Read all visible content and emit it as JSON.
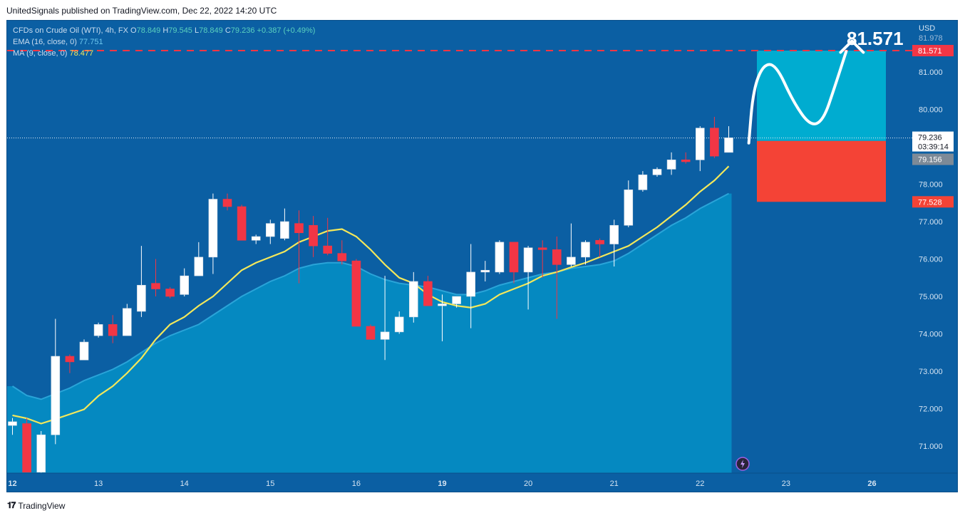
{
  "caption": "UnitedSignals published on TradingView.com, Dec 22, 2022 14:20 UTC",
  "brand": "TradingView",
  "brand_icon": "tradingview-logo-icon",
  "legend": {
    "symbol": "CFDs on Crude Oil (WTI), 4h, FX",
    "o_label": "O",
    "o": "78.849",
    "h_label": "H",
    "h": "79.545",
    "l_label": "L",
    "l": "78.849",
    "c_label": "C",
    "c": "79.236",
    "change": "+0.387 (+0.49%)",
    "ema_label": "EMA (16, close, 0)",
    "ema_value": "77.751",
    "ma_label": "MA (9, close, 0)",
    "ma_value": "78.477"
  },
  "colors": {
    "background": "#0b5fa3",
    "area_fill": "#0589c1",
    "ema_line": "#2aa4d8",
    "ma_line": "#f4e85a",
    "bull": "#ffffff",
    "bear": "#f23645",
    "target_zone": "#00acd0",
    "stop_zone": "#f44336",
    "target_line": "#f23645"
  },
  "chart_data": {
    "type": "candlestick",
    "currency": "USD",
    "ylim": [
      70.3,
      81.95
    ],
    "y_ticks": [
      "71.000",
      "72.000",
      "73.000",
      "74.000",
      "75.000",
      "76.000",
      "77.000",
      "78.000",
      "79.000",
      "80.000",
      "81.000"
    ],
    "x_ticks": [
      {
        "label": "12",
        "index": 0
      },
      {
        "label": "13",
        "index": 6
      },
      {
        "label": "14",
        "index": 12
      },
      {
        "label": "15",
        "index": 18
      },
      {
        "label": "16",
        "index": 24
      },
      {
        "label": "19",
        "index": 30
      },
      {
        "label": "20",
        "index": 36
      },
      {
        "label": "21",
        "index": 42
      },
      {
        "label": "22",
        "index": 48
      },
      {
        "label": "23",
        "index": 54
      },
      {
        "label": "26",
        "index": 60
      }
    ],
    "candles": [
      [
        71.55,
        71.75,
        71.3,
        71.65
      ],
      [
        71.6,
        71.75,
        70.3,
        70.3
      ],
      [
        70.3,
        71.4,
        70.25,
        71.3
      ],
      [
        71.3,
        74.4,
        71.05,
        73.4
      ],
      [
        73.4,
        73.45,
        72.95,
        73.25
      ],
      [
        73.3,
        73.85,
        73.3,
        73.78
      ],
      [
        73.95,
        74.3,
        73.9,
        74.25
      ],
      [
        74.25,
        74.5,
        73.75,
        73.95
      ],
      [
        73.95,
        74.8,
        73.95,
        74.68
      ],
      [
        74.6,
        76.35,
        74.45,
        75.3
      ],
      [
        75.35,
        76.0,
        75.0,
        75.2
      ],
      [
        75.2,
        75.25,
        74.95,
        75.0
      ],
      [
        75.05,
        75.75,
        75.0,
        75.55
      ],
      [
        75.55,
        76.45,
        75.55,
        76.05
      ],
      [
        76.05,
        77.75,
        75.6,
        77.6
      ],
      [
        77.6,
        77.75,
        77.3,
        77.4
      ],
      [
        77.4,
        77.45,
        76.5,
        76.5
      ],
      [
        76.5,
        76.65,
        76.4,
        76.6
      ],
      [
        76.6,
        77.05,
        76.4,
        76.95
      ],
      [
        76.55,
        77.35,
        76.5,
        77.0
      ],
      [
        76.95,
        77.3,
        75.35,
        76.7
      ],
      [
        76.9,
        77.15,
        76.05,
        76.35
      ],
      [
        76.35,
        77.1,
        76.1,
        76.15
      ],
      [
        76.15,
        76.5,
        75.85,
        75.95
      ],
      [
        75.95,
        76.0,
        74.2,
        74.2
      ],
      [
        74.2,
        74.25,
        73.85,
        73.85
      ],
      [
        73.85,
        75.55,
        73.3,
        74.05
      ],
      [
        74.05,
        74.6,
        74.0,
        74.45
      ],
      [
        74.45,
        75.65,
        74.3,
        75.4
      ],
      [
        75.4,
        75.55,
        74.8,
        74.75
      ],
      [
        74.75,
        75.05,
        73.8,
        74.8
      ],
      [
        74.8,
        75.0,
        74.7,
        75.0
      ],
      [
        75.0,
        76.4,
        74.15,
        75.65
      ],
      [
        75.65,
        75.95,
        75.4,
        75.7
      ],
      [
        75.65,
        76.5,
        75.6,
        76.45
      ],
      [
        76.45,
        76.45,
        75.35,
        75.65
      ],
      [
        75.65,
        76.35,
        74.65,
        76.3
      ],
      [
        76.3,
        76.5,
        75.5,
        76.25
      ],
      [
        76.25,
        76.6,
        74.4,
        75.85
      ],
      [
        75.85,
        76.95,
        75.8,
        76.05
      ],
      [
        76.05,
        76.5,
        75.85,
        76.45
      ],
      [
        76.5,
        76.55,
        76.05,
        76.4
      ],
      [
        76.4,
        77.05,
        75.8,
        76.9
      ],
      [
        76.9,
        78.1,
        76.85,
        77.85
      ],
      [
        77.85,
        78.35,
        77.8,
        78.25
      ],
      [
        78.25,
        78.45,
        78.2,
        78.4
      ],
      [
        78.4,
        78.85,
        78.25,
        78.65
      ],
      [
        78.65,
        78.85,
        78.55,
        78.6
      ],
      [
        78.65,
        79.55,
        78.35,
        79.5
      ],
      [
        79.5,
        79.8,
        78.7,
        78.75
      ],
      [
        78.85,
        79.55,
        78.85,
        79.24
      ]
    ],
    "ma": [
      71.82,
      71.74,
      71.6,
      71.72,
      71.85,
      71.98,
      72.34,
      72.6,
      72.95,
      73.35,
      73.85,
      74.25,
      74.45,
      74.75,
      75.0,
      75.35,
      75.7,
      75.9,
      76.05,
      76.2,
      76.45,
      76.6,
      76.75,
      76.8,
      76.6,
      76.25,
      75.85,
      75.5,
      75.35,
      75.05,
      74.85,
      74.75,
      74.7,
      74.8,
      75.05,
      75.2,
      75.35,
      75.55,
      75.65,
      75.78,
      75.9,
      76.05,
      76.2,
      76.35,
      76.6,
      76.85,
      77.15,
      77.45,
      77.8,
      78.1,
      78.48
    ],
    "ema": [
      72.6,
      72.35,
      72.25,
      72.4,
      72.55,
      72.75,
      72.9,
      73.05,
      73.25,
      73.5,
      73.75,
      73.95,
      74.1,
      74.25,
      74.5,
      74.75,
      75.0,
      75.2,
      75.4,
      75.55,
      75.75,
      75.85,
      75.9,
      75.9,
      75.8,
      75.6,
      75.45,
      75.35,
      75.3,
      75.25,
      75.15,
      75.05,
      75.05,
      75.15,
      75.3,
      75.4,
      75.5,
      75.6,
      75.65,
      75.75,
      75.8,
      75.85,
      75.95,
      76.15,
      76.4,
      76.65,
      76.9,
      77.1,
      77.35,
      77.55,
      77.75
    ],
    "last_price": "79.236",
    "countdown": "03:39:14",
    "prev_close_label": "79.156",
    "target": {
      "price": 81.571,
      "label": "81.571",
      "big_label": "81.571"
    },
    "entry_price": 79.156,
    "stop": {
      "price": 77.528,
      "label": "77.528"
    },
    "scale_partial_label": "81.978",
    "projection_start_index": 51.4,
    "projection_end_index": 58.6,
    "projection_path": [
      [
        51.4,
        79.1
      ],
      [
        51.7,
        80.5
      ],
      [
        52.4,
        81.2
      ],
      [
        53.3,
        81.2
      ],
      [
        54.5,
        80.2
      ],
      [
        55.7,
        79.55
      ],
      [
        56.6,
        79.7
      ],
      [
        57.4,
        80.6
      ],
      [
        58.2,
        81.55
      ]
    ],
    "arrow_tip": [
      58.6,
      81.6
    ]
  }
}
